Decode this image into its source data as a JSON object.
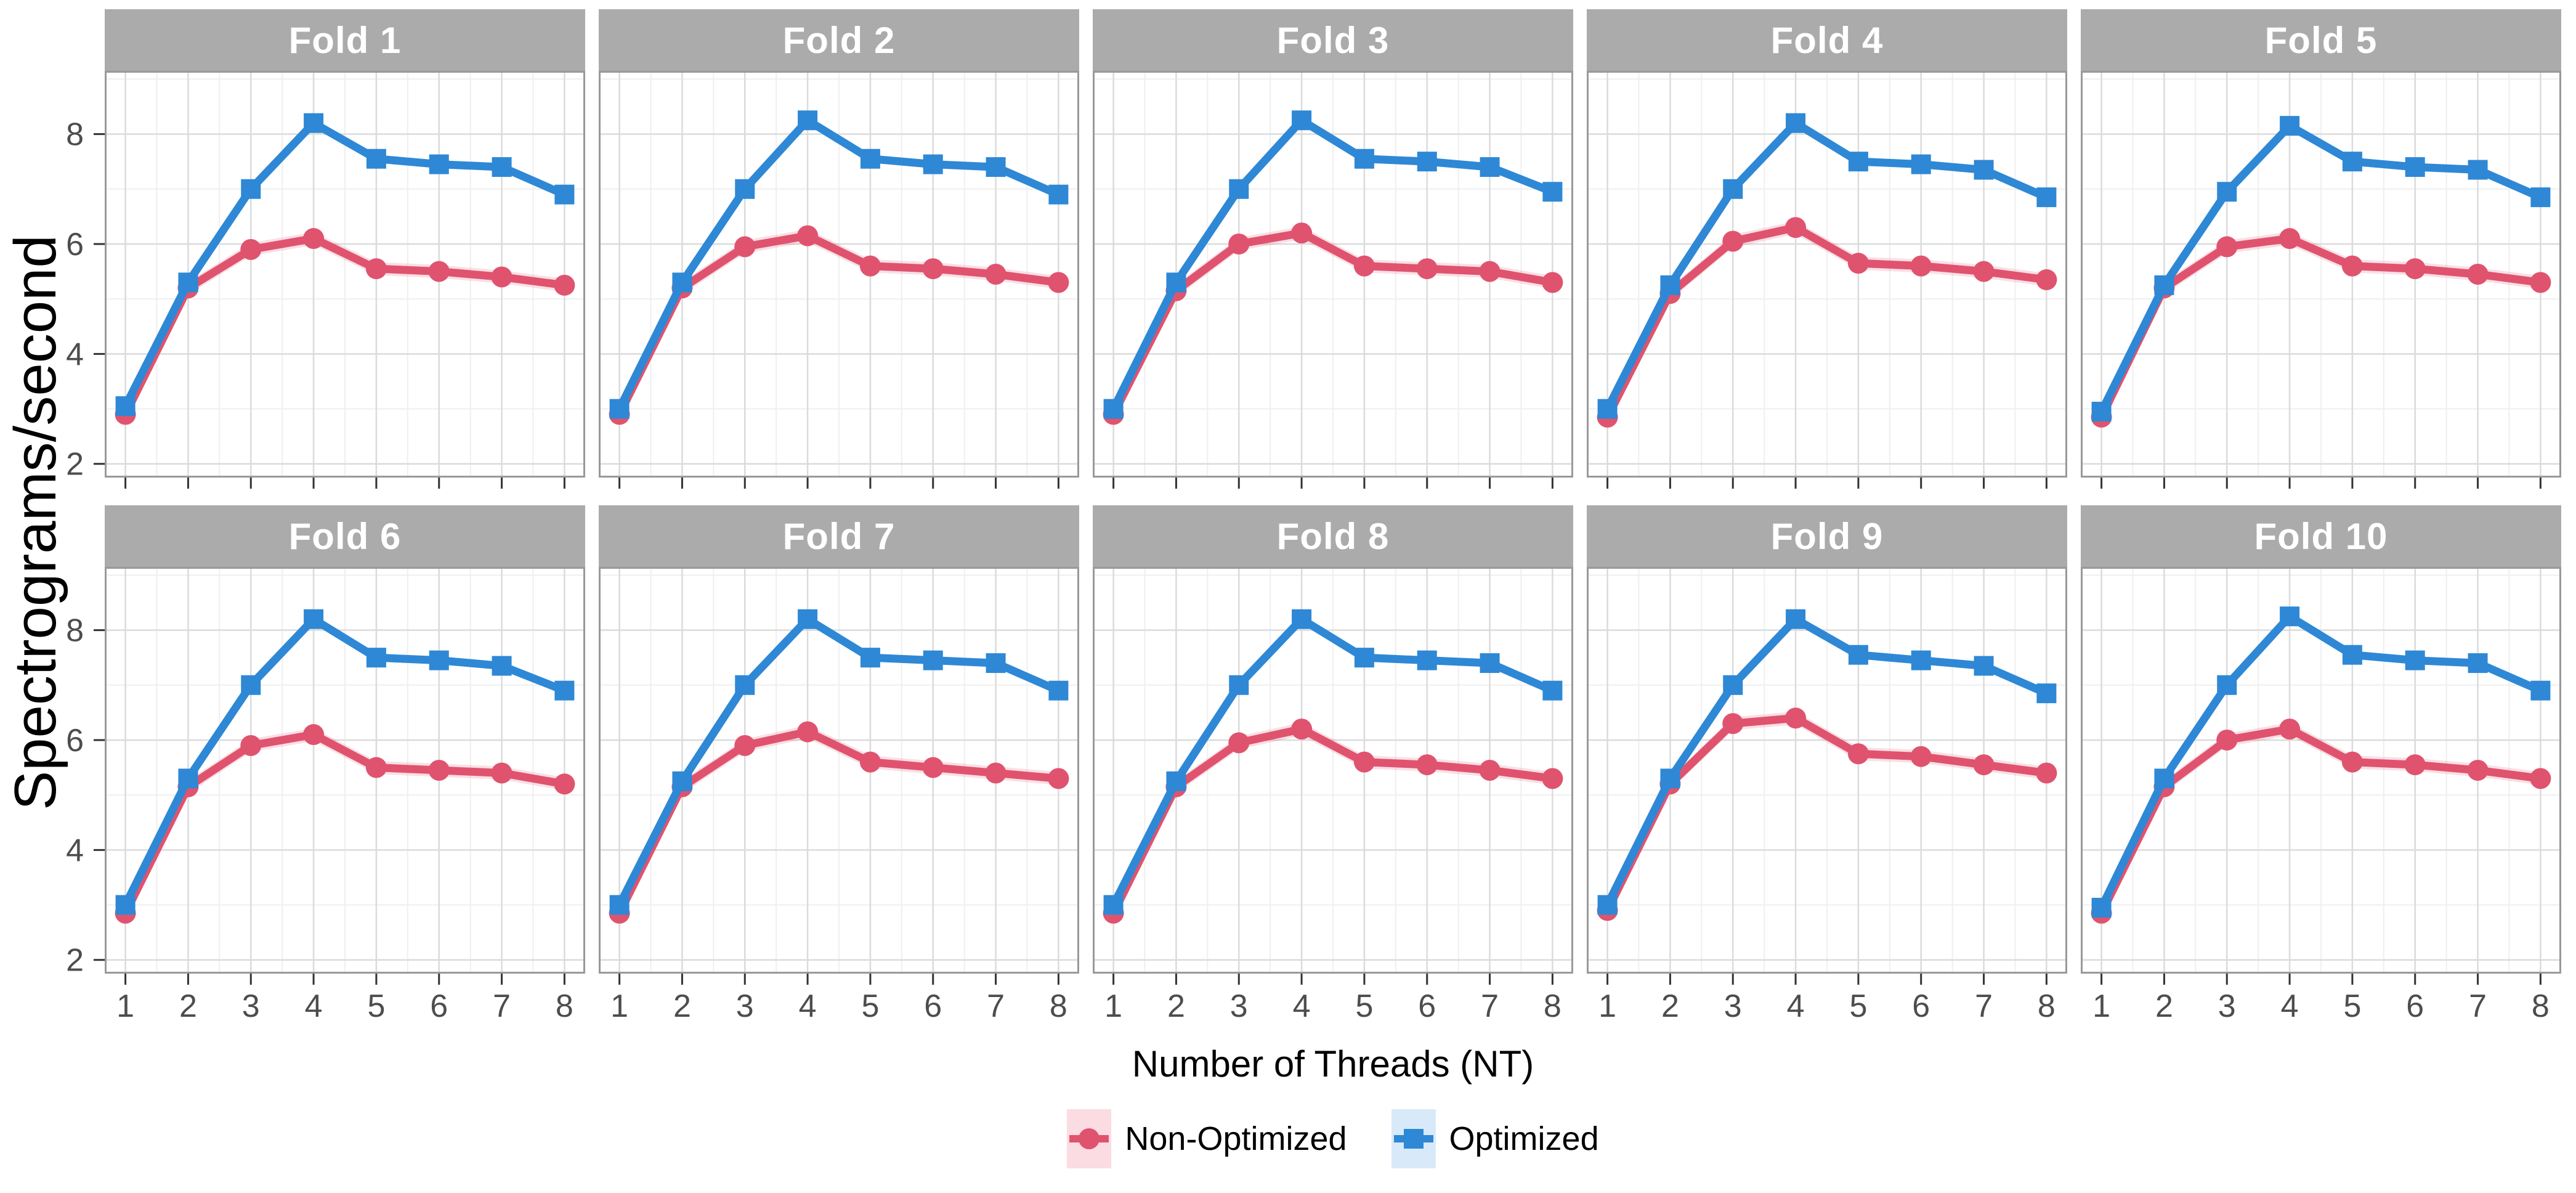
{
  "chart_data": {
    "type": "line",
    "title": "",
    "xlabel": "Number of Threads (NT)",
    "ylabel": "Spectrograms/second",
    "x": [
      1,
      2,
      3,
      4,
      5,
      6,
      7,
      8
    ],
    "x_ticks": [
      1,
      2,
      3,
      4,
      5,
      6,
      7,
      8
    ],
    "y_ticks": [
      2,
      4,
      6,
      8
    ],
    "x_minor_ticks": [
      1.5,
      2.5,
      3.5,
      4.5,
      5.5,
      6.5,
      7.5
    ],
    "y_minor_ticks": [
      3,
      5,
      7,
      9
    ],
    "xlim": [
      0.67,
      8.33
    ],
    "ylim": [
      1.75,
      9.15
    ],
    "grid": true,
    "legend_position": "bottom",
    "facets": [
      {
        "label": "Fold 1",
        "series": [
          {
            "name": "Non-Optimized",
            "values": [
              2.9,
              5.2,
              5.9,
              6.1,
              5.55,
              5.5,
              5.4,
              5.25
            ]
          },
          {
            "name": "Optimized",
            "values": [
              3.05,
              5.3,
              7.0,
              8.2,
              7.55,
              7.45,
              7.4,
              6.9
            ]
          }
        ]
      },
      {
        "label": "Fold 2",
        "series": [
          {
            "name": "Non-Optimized",
            "values": [
              2.9,
              5.2,
              5.95,
              6.15,
              5.6,
              5.55,
              5.45,
              5.3
            ]
          },
          {
            "name": "Optimized",
            "values": [
              3.0,
              5.3,
              7.0,
              8.25,
              7.55,
              7.45,
              7.4,
              6.9
            ]
          }
        ]
      },
      {
        "label": "Fold 3",
        "series": [
          {
            "name": "Non-Optimized",
            "values": [
              2.9,
              5.15,
              6.0,
              6.2,
              5.6,
              5.55,
              5.5,
              5.3
            ]
          },
          {
            "name": "Optimized",
            "values": [
              3.0,
              5.3,
              7.0,
              8.25,
              7.55,
              7.5,
              7.4,
              6.95
            ]
          }
        ]
      },
      {
        "label": "Fold 4",
        "series": [
          {
            "name": "Non-Optimized",
            "values": [
              2.85,
              5.1,
              6.05,
              6.3,
              5.65,
              5.6,
              5.5,
              5.35
            ]
          },
          {
            "name": "Optimized",
            "values": [
              3.0,
              5.25,
              7.0,
              8.2,
              7.5,
              7.45,
              7.35,
              6.85
            ]
          }
        ]
      },
      {
        "label": "Fold 5",
        "series": [
          {
            "name": "Non-Optimized",
            "values": [
              2.85,
              5.2,
              5.95,
              6.1,
              5.6,
              5.55,
              5.45,
              5.3
            ]
          },
          {
            "name": "Optimized",
            "values": [
              2.95,
              5.25,
              6.95,
              8.15,
              7.5,
              7.4,
              7.35,
              6.85
            ]
          }
        ]
      },
      {
        "label": "Fold 6",
        "series": [
          {
            "name": "Non-Optimized",
            "values": [
              2.85,
              5.15,
              5.9,
              6.1,
              5.5,
              5.45,
              5.4,
              5.2
            ]
          },
          {
            "name": "Optimized",
            "values": [
              3.0,
              5.3,
              7.0,
              8.2,
              7.5,
              7.45,
              7.35,
              6.9
            ]
          }
        ]
      },
      {
        "label": "Fold 7",
        "series": [
          {
            "name": "Non-Optimized",
            "values": [
              2.85,
              5.15,
              5.9,
              6.15,
              5.6,
              5.5,
              5.4,
              5.3
            ]
          },
          {
            "name": "Optimized",
            "values": [
              3.0,
              5.25,
              7.0,
              8.2,
              7.5,
              7.45,
              7.4,
              6.9
            ]
          }
        ]
      },
      {
        "label": "Fold 8",
        "series": [
          {
            "name": "Non-Optimized",
            "values": [
              2.85,
              5.15,
              5.95,
              6.2,
              5.6,
              5.55,
              5.45,
              5.3
            ]
          },
          {
            "name": "Optimized",
            "values": [
              3.0,
              5.25,
              7.0,
              8.2,
              7.5,
              7.45,
              7.4,
              6.9
            ]
          }
        ]
      },
      {
        "label": "Fold 9",
        "series": [
          {
            "name": "Non-Optimized",
            "values": [
              2.9,
              5.2,
              6.3,
              6.4,
              5.75,
              5.7,
              5.55,
              5.4
            ]
          },
          {
            "name": "Optimized",
            "values": [
              3.0,
              5.3,
              7.0,
              8.2,
              7.55,
              7.45,
              7.35,
              6.85
            ]
          }
        ]
      },
      {
        "label": "Fold 10",
        "series": [
          {
            "name": "Non-Optimized",
            "values": [
              2.85,
              5.15,
              6.0,
              6.2,
              5.6,
              5.55,
              5.45,
              5.3
            ]
          },
          {
            "name": "Optimized",
            "values": [
              2.95,
              5.3,
              7.0,
              8.25,
              7.55,
              7.45,
              7.4,
              6.9
            ]
          }
        ]
      }
    ]
  },
  "legend": {
    "items": [
      {
        "label": "Non-Optimized",
        "marker": "circle",
        "color": "#E0536E",
        "key_bg": "#FADCE2",
        "ribbon_color": "rgba(224,83,110,0.18)"
      },
      {
        "label": "Optimized",
        "marker": "square",
        "color": "#2E88D5",
        "key_bg": "#D8EAF9",
        "ribbon_color": "rgba(46,136,213,0.15)"
      }
    ]
  },
  "colors": {
    "strip_bg": "#ABABAB",
    "strip_text": "#FFFFFF",
    "grid_major": "#DBDBDB",
    "grid_minor": "#EFEFEF",
    "panel_border": "#999999",
    "tick_mark": "#333333",
    "tick_label": "#4D4D4D",
    "title_text": "#000000"
  }
}
